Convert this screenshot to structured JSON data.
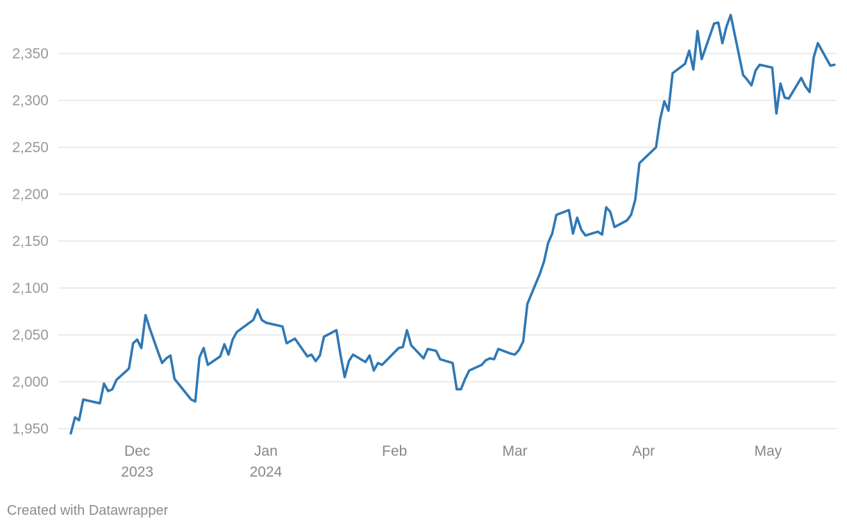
{
  "chart_data": {
    "type": "line",
    "title": "",
    "xlabel": "",
    "ylabel": "",
    "ylim": [
      1950,
      2350
    ],
    "yticks": [
      1950,
      2000,
      2050,
      2100,
      2150,
      2200,
      2250,
      2300,
      2350
    ],
    "ytick_labels": [
      "1,950",
      "2,000",
      "2,050",
      "2,100",
      "2,150",
      "2,200",
      "2,250",
      "2,300",
      "2,350"
    ],
    "xlim": [
      "2023-11-14",
      "2024-05-15"
    ],
    "xticks": [
      {
        "date": "2023-12-01",
        "label": "Dec",
        "sublabel": "2023"
      },
      {
        "date": "2024-01-01",
        "label": "Jan",
        "sublabel": "2024"
      },
      {
        "date": "2024-02-01",
        "label": "Feb",
        "sublabel": ""
      },
      {
        "date": "2024-03-01",
        "label": "Mar",
        "sublabel": ""
      },
      {
        "date": "2024-04-01",
        "label": "Apr",
        "sublabel": ""
      },
      {
        "date": "2024-05-01",
        "label": "May",
        "sublabel": ""
      }
    ],
    "grid": true,
    "series": [
      {
        "color": "#2f78b4",
        "points": [
          [
            "2023-11-15",
            1945
          ],
          [
            "2023-11-16",
            1962
          ],
          [
            "2023-11-17",
            1959
          ],
          [
            "2023-11-18",
            1981
          ],
          [
            "2023-11-22",
            1977
          ],
          [
            "2023-11-23",
            1998
          ],
          [
            "2023-11-24",
            1990
          ],
          [
            "2023-11-25",
            1992
          ],
          [
            "2023-11-26",
            2002
          ],
          [
            "2023-11-29",
            2014
          ],
          [
            "2023-11-30",
            2041
          ],
          [
            "2023-12-01",
            2045
          ],
          [
            "2023-12-02",
            2036
          ],
          [
            "2023-12-03",
            2071
          ],
          [
            "2023-12-04",
            2057
          ],
          [
            "2023-12-06",
            2032
          ],
          [
            "2023-12-07",
            2020
          ],
          [
            "2023-12-08",
            2025
          ],
          [
            "2023-12-09",
            2028
          ],
          [
            "2023-12-10",
            2003
          ],
          [
            "2023-12-14",
            1981
          ],
          [
            "2023-12-15",
            1979
          ],
          [
            "2023-12-16",
            2026
          ],
          [
            "2023-12-17",
            2036
          ],
          [
            "2023-12-18",
            2018
          ],
          [
            "2023-12-21",
            2027
          ],
          [
            "2023-12-22",
            2040
          ],
          [
            "2023-12-23",
            2029
          ],
          [
            "2023-12-24",
            2045
          ],
          [
            "2023-12-25",
            2053
          ],
          [
            "2023-12-29",
            2066
          ],
          [
            "2023-12-30",
            2077
          ],
          [
            "2023-12-31",
            2066
          ],
          [
            "2024-01-01",
            2063
          ],
          [
            "2024-01-05",
            2059
          ],
          [
            "2024-01-06",
            2041
          ],
          [
            "2024-01-08",
            2046
          ],
          [
            "2024-01-11",
            2027
          ],
          [
            "2024-01-12",
            2029
          ],
          [
            "2024-01-13",
            2022
          ],
          [
            "2024-01-14",
            2028
          ],
          [
            "2024-01-15",
            2048
          ],
          [
            "2024-01-18",
            2055
          ],
          [
            "2024-01-19",
            2028
          ],
          [
            "2024-01-20",
            2005
          ],
          [
            "2024-01-21",
            2022
          ],
          [
            "2024-01-22",
            2029
          ],
          [
            "2024-01-25",
            2021
          ],
          [
            "2024-01-26",
            2028
          ],
          [
            "2024-01-27",
            2012
          ],
          [
            "2024-01-28",
            2020
          ],
          [
            "2024-01-29",
            2018
          ],
          [
            "2024-02-02",
            2036
          ],
          [
            "2024-02-03",
            2037
          ],
          [
            "2024-02-04",
            2055
          ],
          [
            "2024-02-05",
            2039
          ],
          [
            "2024-02-08",
            2025
          ],
          [
            "2024-02-09",
            2035
          ],
          [
            "2024-02-11",
            2033
          ],
          [
            "2024-02-12",
            2024
          ],
          [
            "2024-02-15",
            2020
          ],
          [
            "2024-02-16",
            1992
          ],
          [
            "2024-02-17",
            1992
          ],
          [
            "2024-02-18",
            2003
          ],
          [
            "2024-02-19",
            2012
          ],
          [
            "2024-02-22",
            2018
          ],
          [
            "2024-02-23",
            2023
          ],
          [
            "2024-02-24",
            2025
          ],
          [
            "2024-02-25",
            2024
          ],
          [
            "2024-02-26",
            2035
          ],
          [
            "2024-02-29",
            2030
          ],
          [
            "2024-03-01",
            2029
          ],
          [
            "2024-03-02",
            2034
          ],
          [
            "2024-03-03",
            2043
          ],
          [
            "2024-03-04",
            2083
          ],
          [
            "2024-03-07",
            2115
          ],
          [
            "2024-03-08",
            2128
          ],
          [
            "2024-03-09",
            2148
          ],
          [
            "2024-03-10",
            2158
          ],
          [
            "2024-03-11",
            2178
          ],
          [
            "2024-03-14",
            2183
          ],
          [
            "2024-03-15",
            2158
          ],
          [
            "2024-03-16",
            2175
          ],
          [
            "2024-03-17",
            2162
          ],
          [
            "2024-03-18",
            2156
          ],
          [
            "2024-03-21",
            2160
          ],
          [
            "2024-03-22",
            2157
          ],
          [
            "2024-03-23",
            2186
          ],
          [
            "2024-03-24",
            2181
          ],
          [
            "2024-03-25",
            2165
          ],
          [
            "2024-03-28",
            2172
          ],
          [
            "2024-03-29",
            2178
          ],
          [
            "2024-03-30",
            2194
          ],
          [
            "2024-03-31",
            2233
          ],
          [
            "2024-04-04",
            2250
          ],
          [
            "2024-04-05",
            2280
          ],
          [
            "2024-04-06",
            2299
          ],
          [
            "2024-04-07",
            2289
          ],
          [
            "2024-04-08",
            2329
          ],
          [
            "2024-04-11",
            2339
          ],
          [
            "2024-04-12",
            2353
          ],
          [
            "2024-04-13",
            2333
          ],
          [
            "2024-04-14",
            2374
          ],
          [
            "2024-04-15",
            2344
          ],
          [
            "2024-04-18",
            2382
          ],
          [
            "2024-04-19",
            2383
          ],
          [
            "2024-04-20",
            2361
          ],
          [
            "2024-04-21",
            2379
          ],
          [
            "2024-04-22",
            2391
          ],
          [
            "2024-04-25",
            2327
          ],
          [
            "2024-04-26",
            2322
          ],
          [
            "2024-04-27",
            2316
          ],
          [
            "2024-04-28",
            2332
          ],
          [
            "2024-04-29",
            2338
          ],
          [
            "2024-05-02",
            2335
          ],
          [
            "2024-05-03",
            2286
          ],
          [
            "2024-05-04",
            2318
          ],
          [
            "2024-05-05",
            2303
          ],
          [
            "2024-05-06",
            2302
          ],
          [
            "2024-05-09",
            2324
          ],
          [
            "2024-05-10",
            2315
          ],
          [
            "2024-05-11",
            2309
          ],
          [
            "2024-05-12",
            2346
          ],
          [
            "2024-05-13",
            2361
          ],
          [
            "2024-05-16",
            2337
          ],
          [
            "2024-05-17",
            2338
          ]
        ]
      }
    ]
  },
  "footer": {
    "credit": "Created with Datawrapper"
  }
}
